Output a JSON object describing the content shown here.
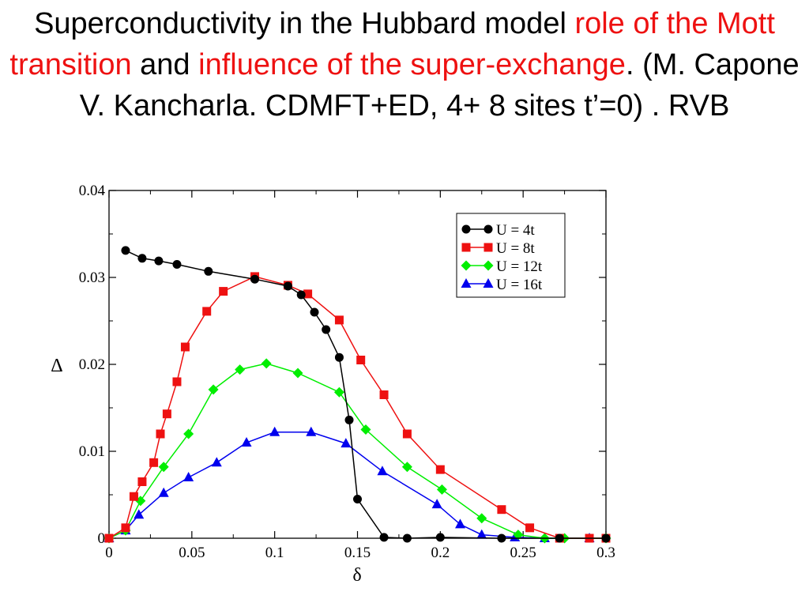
{
  "title": {
    "part1": "Superconductivity in the Hubbard model ",
    "red1": "role of the Mott transition",
    "part2": " and ",
    "red2": "influence of the super-exchange",
    "part3": ". (M. Capone V. Kancharla. CDMFT+ED, 4+ 8 sites  t’=0) . RVB"
  },
  "colors": {
    "accent_red": "#ee1111"
  },
  "chart_data": {
    "type": "line",
    "title": "",
    "xlabel": "δ",
    "ylabel": "Δ",
    "xlim": [
      0,
      0.3
    ],
    "ylim": [
      0,
      0.04
    ],
    "xticks": [
      0,
      0.05,
      0.1,
      0.15,
      0.2,
      0.25,
      0.3
    ],
    "xtick_labels": [
      "0",
      "0.05",
      "0.1",
      "0.15",
      "0.2",
      "0.25",
      "0.3"
    ],
    "yticks": [
      0,
      0.01,
      0.02,
      0.03,
      0.04
    ],
    "ytick_labels": [
      "0",
      "0.01",
      "0.02",
      "0.03",
      "0.04"
    ],
    "grid": false,
    "legend_position": "top-right",
    "series": [
      {
        "name": "U = 4t",
        "color": "#000000",
        "marker": "circle",
        "x": [
          0.01,
          0.02,
          0.03,
          0.041,
          0.06,
          0.088,
          0.108,
          0.116,
          0.124,
          0.131,
          0.139,
          0.145,
          0.15,
          0.166,
          0.18,
          0.2,
          0.237,
          0.272,
          0.3
        ],
        "y": [
          0.0331,
          0.0322,
          0.0319,
          0.0315,
          0.0307,
          0.0298,
          0.029,
          0.028,
          0.026,
          0.024,
          0.0208,
          0.0136,
          0.0045,
          0.0001,
          0.0,
          0.0001,
          0.0,
          0.0,
          0.0
        ]
      },
      {
        "name": "U = 8t",
        "color": "#ee1111",
        "marker": "square",
        "x": [
          0.0,
          0.01,
          0.015,
          0.02,
          0.027,
          0.031,
          0.035,
          0.041,
          0.046,
          0.059,
          0.069,
          0.088,
          0.108,
          0.12,
          0.139,
          0.152,
          0.166,
          0.18,
          0.2,
          0.237,
          0.254,
          0.272,
          0.29,
          0.3
        ],
        "y": [
          0.0,
          0.0012,
          0.0048,
          0.0065,
          0.0087,
          0.012,
          0.0143,
          0.018,
          0.022,
          0.0261,
          0.0284,
          0.0301,
          0.0291,
          0.0281,
          0.0251,
          0.0205,
          0.0165,
          0.012,
          0.0079,
          0.0033,
          0.0012,
          0.0,
          0.0,
          0.0
        ]
      },
      {
        "name": "U = 12t",
        "color": "#00ee00",
        "marker": "diamond",
        "x": [
          0.0,
          0.01,
          0.019,
          0.033,
          0.048,
          0.063,
          0.079,
          0.095,
          0.114,
          0.139,
          0.155,
          0.18,
          0.201,
          0.225,
          0.247,
          0.263,
          0.275,
          0.3
        ],
        "y": [
          0.0,
          0.0009,
          0.0043,
          0.0082,
          0.012,
          0.0171,
          0.0194,
          0.0201,
          0.019,
          0.0168,
          0.0125,
          0.0082,
          0.0056,
          0.0023,
          0.0004,
          0.0,
          0.0,
          0.0
        ]
      },
      {
        "name": "U = 16t",
        "color": "#0000ee",
        "marker": "triangle",
        "x": [
          0.0,
          0.01,
          0.018,
          0.033,
          0.048,
          0.065,
          0.083,
          0.1,
          0.122,
          0.143,
          0.165,
          0.198,
          0.212,
          0.225,
          0.245,
          0.263,
          0.29
        ],
        "y": [
          0.0,
          0.0009,
          0.0027,
          0.0052,
          0.007,
          0.0087,
          0.011,
          0.0122,
          0.0122,
          0.0109,
          0.0077,
          0.0039,
          0.0016,
          0.0004,
          0.0001,
          0.0,
          0.0
        ]
      }
    ]
  }
}
